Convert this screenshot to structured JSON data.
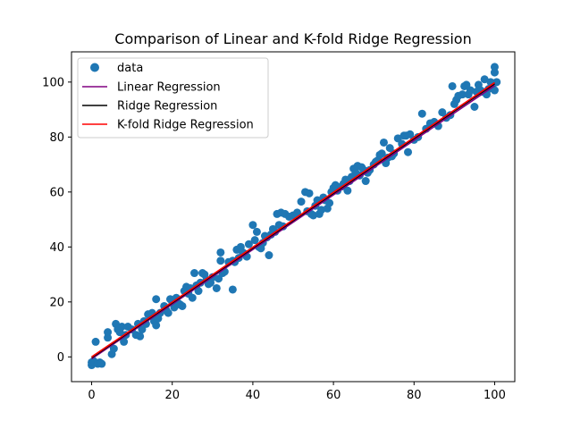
{
  "chart_data": {
    "type": "scatter",
    "title": "Comparison of Linear and K-fold Ridge Regression",
    "xlabel": "",
    "ylabel": "",
    "xlim": [
      -5,
      105
    ],
    "ylim": [
      -9,
      111
    ],
    "xticks": [
      0,
      20,
      40,
      60,
      80,
      100
    ],
    "yticks": [
      0,
      20,
      40,
      60,
      80,
      100
    ],
    "grid": false,
    "legend_position": "upper-left",
    "legend": [
      "data",
      "Linear Regression",
      "Ridge Regression",
      "K-fold Ridge Regression"
    ],
    "scatter_series": {
      "name": "data",
      "color": "#1f77b4",
      "points": [
        [
          0,
          -3
        ],
        [
          0,
          -2
        ],
        [
          0.5,
          -1.5
        ],
        [
          1,
          5.5
        ],
        [
          1.5,
          -2.5
        ],
        [
          2,
          -2
        ],
        [
          2.5,
          -2.5
        ],
        [
          4,
          7
        ],
        [
          4,
          9
        ],
        [
          5,
          1
        ],
        [
          5.5,
          3
        ],
        [
          6,
          12
        ],
        [
          6.5,
          10
        ],
        [
          7,
          9
        ],
        [
          7.5,
          11
        ],
        [
          8,
          5.5
        ],
        [
          8.5,
          8
        ],
        [
          9,
          11
        ],
        [
          10,
          10
        ],
        [
          11,
          8
        ],
        [
          11.5,
          12
        ],
        [
          12,
          7.5
        ],
        [
          12.5,
          10
        ],
        [
          13,
          13
        ],
        [
          13.5,
          12
        ],
        [
          14,
          15.5
        ],
        [
          15,
          16
        ],
        [
          15.5,
          13
        ],
        [
          16,
          21
        ],
        [
          16,
          11.5
        ],
        [
          16.5,
          14
        ],
        [
          17,
          16
        ],
        [
          18,
          18.5
        ],
        [
          18.5,
          17
        ],
        [
          19,
          16
        ],
        [
          19.5,
          21
        ],
        [
          20,
          20
        ],
        [
          20.5,
          18
        ],
        [
          21,
          21.5
        ],
        [
          21.5,
          19.5
        ],
        [
          22,
          19
        ],
        [
          22.5,
          18.5
        ],
        [
          23,
          24
        ],
        [
          23.5,
          25.5
        ],
        [
          24,
          23
        ],
        [
          24.5,
          25
        ],
        [
          25,
          21.5
        ],
        [
          25.5,
          30.5
        ],
        [
          26,
          26
        ],
        [
          26.5,
          24
        ],
        [
          27,
          27
        ],
        [
          27.5,
          30.5
        ],
        [
          28,
          30
        ],
        [
          28.5,
          28
        ],
        [
          29,
          26.5
        ],
        [
          29.5,
          27
        ],
        [
          30,
          29
        ],
        [
          31,
          25
        ],
        [
          31.5,
          28.5
        ],
        [
          32,
          35
        ],
        [
          32,
          38
        ],
        [
          32.5,
          30.5
        ],
        [
          33,
          31
        ],
        [
          34,
          34.5
        ],
        [
          35,
          35
        ],
        [
          35,
          24.5
        ],
        [
          35.5,
          34.5
        ],
        [
          36,
          39
        ],
        [
          36.5,
          36
        ],
        [
          37,
          40
        ],
        [
          37.5,
          38
        ],
        [
          38,
          37.5
        ],
        [
          38.5,
          36.5
        ],
        [
          39,
          41
        ],
        [
          40,
          48
        ],
        [
          40.5,
          42.5
        ],
        [
          41,
          45.5
        ],
        [
          41.5,
          40
        ],
        [
          42,
          39.5
        ],
        [
          42.5,
          41.5
        ],
        [
          43,
          44
        ],
        [
          43.5,
          43.5
        ],
        [
          44,
          37
        ],
        [
          44.5,
          44.5
        ],
        [
          45,
          46.5
        ],
        [
          45.5,
          45.5
        ],
        [
          46,
          52
        ],
        [
          46.5,
          48
        ],
        [
          47,
          52.5
        ],
        [
          47.5,
          47.5
        ],
        [
          48,
          52
        ],
        [
          49,
          51
        ],
        [
          50,
          51.5
        ],
        [
          51,
          52.5
        ],
        [
          52,
          56.5
        ],
        [
          53,
          60
        ],
        [
          53.5,
          53
        ],
        [
          54,
          59.5
        ],
        [
          54.5,
          52
        ],
        [
          55,
          51.5
        ],
        [
          55.5,
          55
        ],
        [
          56,
          57
        ],
        [
          56.5,
          52
        ],
        [
          57,
          53.5
        ],
        [
          57.5,
          58
        ],
        [
          58,
          57
        ],
        [
          58.5,
          54
        ],
        [
          59,
          56
        ],
        [
          59.5,
          60
        ],
        [
          60,
          61.5
        ],
        [
          60.5,
          62.5
        ],
        [
          61,
          60.5
        ],
        [
          62,
          62
        ],
        [
          62.5,
          63
        ],
        [
          63,
          64.5
        ],
        [
          63.5,
          60.5
        ],
        [
          64,
          64
        ],
        [
          64.5,
          65.5
        ],
        [
          65,
          68.5
        ],
        [
          65.5,
          67
        ],
        [
          66,
          69.5
        ],
        [
          66.5,
          66
        ],
        [
          67,
          69
        ],
        [
          67.5,
          68
        ],
        [
          68,
          64
        ],
        [
          68.5,
          67
        ],
        [
          69,
          68
        ],
        [
          70,
          70
        ],
        [
          70.5,
          71
        ],
        [
          71,
          71.5
        ],
        [
          71.5,
          73.5
        ],
        [
          72,
          74
        ],
        [
          72.5,
          78
        ],
        [
          73,
          70.5
        ],
        [
          73.5,
          72.5
        ],
        [
          74,
          76
        ],
        [
          74.5,
          73
        ],
        [
          75,
          74
        ],
        [
          76,
          79.5
        ],
        [
          77,
          77.5
        ],
        [
          77.5,
          80.5
        ],
        [
          78,
          80.5
        ],
        [
          78.5,
          74.5
        ],
        [
          79,
          81
        ],
        [
          80,
          79
        ],
        [
          81,
          80
        ],
        [
          82,
          88.5
        ],
        [
          83,
          83
        ],
        [
          84,
          85
        ],
        [
          85,
          85.5
        ],
        [
          86,
          84
        ],
        [
          87,
          89
        ],
        [
          88,
          87
        ],
        [
          89,
          88
        ],
        [
          89.5,
          98.5
        ],
        [
          90,
          92
        ],
        [
          90.5,
          93.5
        ],
        [
          91,
          95
        ],
        [
          92,
          95.5
        ],
        [
          92.5,
          98.5
        ],
        [
          93,
          99
        ],
        [
          93.5,
          95.5
        ],
        [
          94,
          97
        ],
        [
          95,
          91
        ],
        [
          95.5,
          96.5
        ],
        [
          96,
          99
        ],
        [
          96.5,
          97
        ],
        [
          97,
          96.5
        ],
        [
          97.5,
          101
        ],
        [
          98,
          95.5
        ],
        [
          98.5,
          97.5
        ],
        [
          99,
          100
        ],
        [
          99.5,
          98
        ],
        [
          100,
          103.5
        ],
        [
          100,
          105.5
        ],
        [
          100.5,
          100
        ],
        [
          100,
          97
        ]
      ]
    },
    "line_series": [
      {
        "name": "Linear Regression",
        "color": "#800080",
        "x": [
          0,
          100
        ],
        "y": [
          -0.7,
          98.7
        ]
      },
      {
        "name": "Ridge Regression",
        "color": "#000000",
        "x": [
          0,
          100
        ],
        "y": [
          -0.3,
          99.4
        ]
      },
      {
        "name": "K-fold Ridge Regression",
        "color": "#ff0000",
        "x": [
          0,
          100
        ],
        "y": [
          0.0,
          99.8
        ]
      }
    ]
  }
}
